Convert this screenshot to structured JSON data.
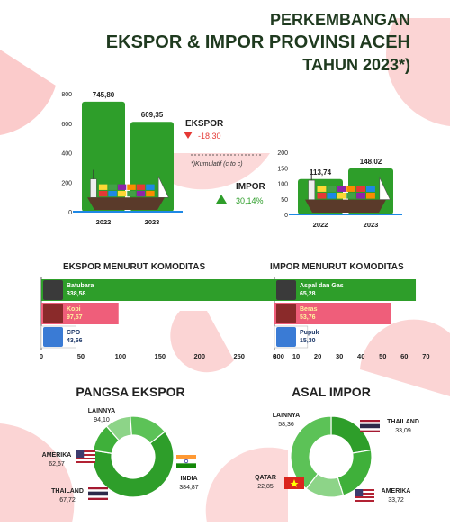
{
  "title": {
    "line1": "PERKEMBANGAN",
    "line2": "EKSPOR & IMPOR PROVINSI ACEH",
    "line3": "TAHUN 2023*)"
  },
  "footnote": "*)Kumulatif (c to c)",
  "colors": {
    "green": "#2e9e2a",
    "dark_green": "#1f7a1f",
    "light_green": "#7ed27a",
    "red": "#e53935",
    "pink": "#ef5e7a",
    "title": "#1f3a1f",
    "watermelon": "#f48a8a"
  },
  "chart_data": [
    {
      "id": "ekspor_trend",
      "type": "bar",
      "categories": [
        "2022",
        "2023"
      ],
      "values": [
        745.8,
        609.35
      ],
      "value_labels": [
        "745,80",
        "609,35"
      ],
      "yticks": [
        "0",
        "200",
        "400",
        "600",
        "800"
      ],
      "ylim": [
        0,
        800
      ],
      "label": "EKSPOR",
      "change": "-18,30",
      "change_direction": "down",
      "icon": "cargo-ship-icon"
    },
    {
      "id": "impor_trend",
      "type": "bar",
      "categories": [
        "2022",
        "2023"
      ],
      "values": [
        113.74,
        148.02
      ],
      "value_labels": [
        "113,74",
        "148,02"
      ],
      "yticks": [
        "0",
        "50",
        "100",
        "150",
        "200"
      ],
      "ylim": [
        0,
        200
      ],
      "label": "IMPOR",
      "change": "30,14%",
      "change_direction": "up",
      "icon": "cargo-ship-icon"
    },
    {
      "id": "ekspor_komoditas",
      "type": "bar",
      "orientation": "horizontal",
      "title": "EKSPOR MENURUT KOMODITAS",
      "categories": [
        "Batubara",
        "Kopi",
        "CPO"
      ],
      "values": [
        338.58,
        97.57,
        43.66
      ],
      "value_labels": [
        "338,58",
        "97,57",
        "43,66"
      ],
      "xticks": [
        "0",
        "50",
        "100",
        "150",
        "200",
        "250",
        "300"
      ],
      "xlim": [
        0,
        330
      ],
      "bar_colors": [
        "#2e9e2a",
        "#ef5e7a",
        "#ffffff"
      ],
      "icons": [
        "coal-icon",
        "coffee-beans-icon",
        "palm-oil-icon"
      ]
    },
    {
      "id": "impor_komoditas",
      "type": "bar",
      "orientation": "horizontal",
      "title": "IMPOR MENURUT KOMODITAS",
      "categories": [
        "Aspal dan Gas",
        "Beras",
        "Pupuk"
      ],
      "values": [
        65.28,
        53.76,
        15.3
      ],
      "value_labels": [
        "65,28",
        "53,76",
        "15,30"
      ],
      "xticks": [
        "0",
        "10",
        "20",
        "30",
        "40",
        "50",
        "60",
        "70"
      ],
      "xlim": [
        0,
        74
      ],
      "bar_colors": [
        "#2e9e2a",
        "#ef5e7a",
        "#ffffff"
      ],
      "icons": [
        "asphalt-road-icon",
        "rice-icon",
        "fertilizer-icon"
      ]
    },
    {
      "id": "pangsa_ekspor",
      "type": "pie",
      "variant": "donut",
      "title": "PANGSA EKSPOR",
      "labels": [
        "INDIA",
        "THAILAND",
        "AMERIKA",
        "LAINNYA"
      ],
      "values": [
        384.87,
        67.72,
        62.67,
        94.1
      ],
      "value_labels": [
        "384,87",
        "67,72",
        "62,67",
        "94,10"
      ],
      "colors": [
        "#2e9e2a",
        "#3fb03a",
        "#8dd488",
        "#5cc257"
      ],
      "flags": [
        "india-flag-icon",
        "thailand-flag-icon",
        "usa-flag-icon",
        ""
      ]
    },
    {
      "id": "asal_impor",
      "type": "pie",
      "variant": "donut",
      "title": "ASAL IMPOR",
      "labels": [
        "THAILAND",
        "AMERIKA",
        "QATAR",
        "LAINNYA"
      ],
      "values": [
        33.09,
        33.72,
        22.85,
        58.36
      ],
      "value_labels": [
        "33,09",
        "33,72",
        "22,85",
        "58,36"
      ],
      "colors": [
        "#2e9e2a",
        "#3fb03a",
        "#8dd488",
        "#5cc257"
      ],
      "flags": [
        "thailand-flag-icon",
        "usa-flag-icon",
        "vietnam-flag-icon",
        ""
      ]
    }
  ]
}
